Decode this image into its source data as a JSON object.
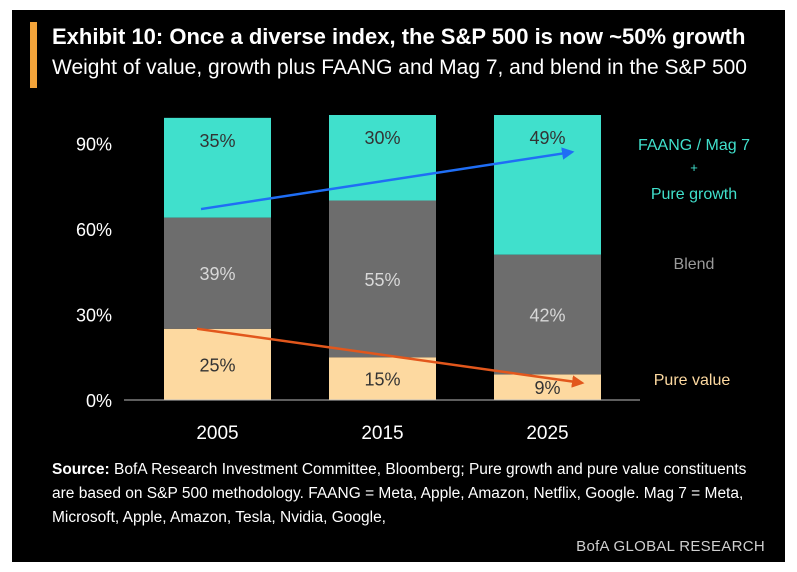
{
  "header": {
    "title": "Exhibit 10: Once a diverse index, the S&P 500 is now ~50% growth",
    "subtitle": "Weight of value, growth plus FAANG and Mag 7, and blend in the S&P 500"
  },
  "footer": {
    "source_label": "Source:",
    "source_text": "BofA Research Investment Committee, Bloomberg; Pure growth and pure value constituents are based on S&P 500 methodology. FAANG = Meta, Apple, Amazon, Netflix, Google. Mag 7 = Meta, Microsoft, Apple, Amazon, Tesla, Nvidia, Google,",
    "brand": "BofA GLOBAL RESEARCH"
  },
  "colors": {
    "background": "#000000",
    "accent": "#f2a33a",
    "pure_value": "#fdd9a0",
    "blend": "#6d6d6d",
    "growth": "#40e0cc",
    "arrow_growth": "#1f6ef5",
    "arrow_value": "#e2571c"
  },
  "chart_data": {
    "type": "bar",
    "stacked": true,
    "categories": [
      "2005",
      "2015",
      "2025"
    ],
    "series": [
      {
        "name": "Pure value",
        "values": [
          25,
          15,
          9
        ],
        "labels": [
          "25%",
          "15%",
          "9%"
        ]
      },
      {
        "name": "Blend",
        "values": [
          39,
          55,
          42
        ],
        "labels": [
          "39%",
          "55%",
          "42%"
        ]
      },
      {
        "name": "FAANG / Mag 7 + Pure growth",
        "legend_lines": [
          "FAANG / Mag 7",
          "+",
          "Pure growth"
        ],
        "values": [
          35,
          30,
          49
        ],
        "labels": [
          "35%",
          "30%",
          "49%"
        ]
      }
    ],
    "yticks": [
      "0%",
      "30%",
      "60%",
      "90%"
    ],
    "ytick_values": [
      0,
      30,
      60,
      90
    ],
    "ylim": [
      0,
      100
    ],
    "grid": false,
    "legend_placement": "right, inline",
    "arrows": [
      {
        "series": "FAANG / Mag 7 + Pure growth",
        "from_value": 67,
        "to_value": 87,
        "direction": "up"
      },
      {
        "series": "Pure value",
        "from_value": 25,
        "to_value": 6,
        "direction": "down"
      }
    ]
  }
}
